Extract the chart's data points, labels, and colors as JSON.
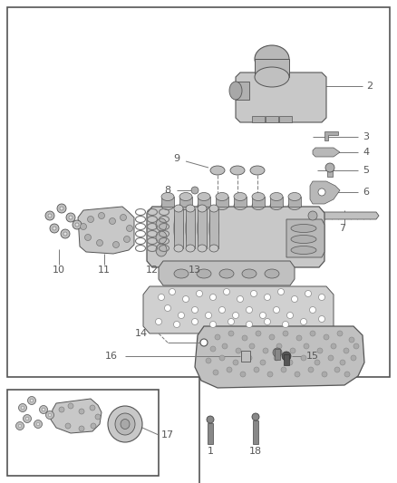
{
  "bg_color": "#ffffff",
  "border_color": "#555555",
  "fig_w": 4.38,
  "fig_h": 5.33,
  "dpi": 100,
  "gray_dark": "#888888",
  "gray_mid": "#aaaaaa",
  "gray_light": "#cccccc",
  "gray_lighter": "#e0e0e0",
  "line_color": "#777777",
  "text_color": "#555555",
  "font_size": 7.5
}
